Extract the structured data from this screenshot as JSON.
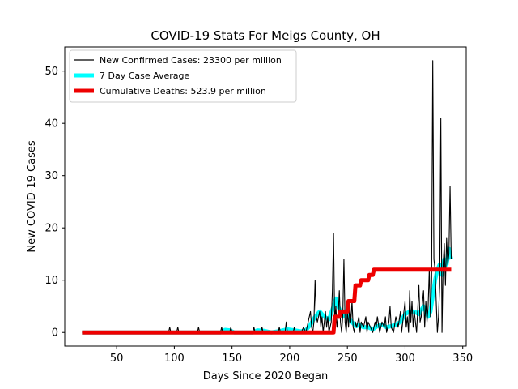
{
  "chart_data": {
    "type": "line",
    "title": "COVID-19 Stats For Meigs County, OH",
    "xlabel": "Days Since 2020 Began",
    "ylabel": "New COVID-19 Cases",
    "xlim": [
      5,
      353
    ],
    "ylim": [
      -2.6,
      54.6
    ],
    "xticks": [
      50,
      100,
      150,
      200,
      250,
      300,
      350
    ],
    "yticks": [
      0,
      10,
      20,
      30,
      40,
      50
    ],
    "legend_position": "top-left",
    "grid": false,
    "series": [
      {
        "name": "New Confirmed Cases: 23300 per million",
        "color": "#000000",
        "style": "thin-line",
        "points": [
          [
            20,
            0
          ],
          [
            95,
            0
          ],
          [
            96,
            1
          ],
          [
            97,
            0
          ],
          [
            102,
            0
          ],
          [
            103,
            1
          ],
          [
            104,
            0
          ],
          [
            120,
            0
          ],
          [
            121,
            1
          ],
          [
            122,
            0
          ],
          [
            140,
            0
          ],
          [
            141,
            1
          ],
          [
            142,
            0
          ],
          [
            148,
            0
          ],
          [
            149,
            1
          ],
          [
            150,
            0
          ],
          [
            168,
            0
          ],
          [
            169,
            1
          ],
          [
            170,
            0
          ],
          [
            175,
            0
          ],
          [
            176,
            1
          ],
          [
            177,
            0
          ],
          [
            190,
            0
          ],
          [
            191,
            1
          ],
          [
            192,
            0
          ],
          [
            196,
            0
          ],
          [
            197,
            2
          ],
          [
            198,
            0
          ],
          [
            203,
            0
          ],
          [
            204,
            1
          ],
          [
            205,
            0
          ],
          [
            210,
            0
          ],
          [
            212,
            1
          ],
          [
            214,
            0
          ],
          [
            216,
            2
          ],
          [
            218,
            4
          ],
          [
            219,
            1
          ],
          [
            220,
            0
          ],
          [
            221,
            2
          ],
          [
            222,
            10
          ],
          [
            223,
            3
          ],
          [
            224,
            2
          ],
          [
            226,
            4
          ],
          [
            227,
            1
          ],
          [
            228,
            3
          ],
          [
            229,
            0
          ],
          [
            230,
            2
          ],
          [
            231,
            4
          ],
          [
            232,
            1
          ],
          [
            233,
            3
          ],
          [
            234,
            0
          ],
          [
            236,
            2
          ],
          [
            237,
            8
          ],
          [
            238,
            19
          ],
          [
            239,
            2
          ],
          [
            240,
            5
          ],
          [
            241,
            1
          ],
          [
            242,
            3
          ],
          [
            243,
            8
          ],
          [
            244,
            2
          ],
          [
            245,
            0
          ],
          [
            246,
            3
          ],
          [
            247,
            14
          ],
          [
            248,
            2
          ],
          [
            249,
            0
          ],
          [
            250,
            4
          ],
          [
            251,
            1
          ],
          [
            252,
            5
          ],
          [
            253,
            2
          ],
          [
            254,
            6
          ],
          [
            255,
            1
          ],
          [
            256,
            0
          ],
          [
            257,
            2
          ],
          [
            258,
            1
          ],
          [
            260,
            3
          ],
          [
            261,
            0
          ],
          [
            262,
            2
          ],
          [
            264,
            1
          ],
          [
            266,
            3
          ],
          [
            267,
            0
          ],
          [
            268,
            2
          ],
          [
            270,
            1
          ],
          [
            272,
            0
          ],
          [
            274,
            2
          ],
          [
            275,
            1
          ],
          [
            276,
            3
          ],
          [
            278,
            0
          ],
          [
            280,
            2
          ],
          [
            282,
            1
          ],
          [
            283,
            3
          ],
          [
            284,
            0
          ],
          [
            286,
            2
          ],
          [
            287,
            5
          ],
          [
            288,
            1
          ],
          [
            290,
            0
          ],
          [
            292,
            3
          ],
          [
            294,
            1
          ],
          [
            296,
            4
          ],
          [
            297,
            0
          ],
          [
            298,
            2
          ],
          [
            300,
            6
          ],
          [
            301,
            1
          ],
          [
            302,
            3
          ],
          [
            303,
            0
          ],
          [
            304,
            8
          ],
          [
            305,
            2
          ],
          [
            306,
            6
          ],
          [
            307,
            1
          ],
          [
            308,
            4
          ],
          [
            310,
            0
          ],
          [
            312,
            9
          ],
          [
            313,
            2
          ],
          [
            314,
            3
          ],
          [
            316,
            8
          ],
          [
            317,
            1
          ],
          [
            318,
            6
          ],
          [
            319,
            2
          ],
          [
            320,
            5
          ],
          [
            321,
            12
          ],
          [
            322,
            3
          ],
          [
            323,
            10
          ],
          [
            324,
            52
          ],
          [
            325,
            14
          ],
          [
            326,
            12
          ],
          [
            327,
            6
          ],
          [
            328,
            0
          ],
          [
            329,
            3
          ],
          [
            330,
            9
          ],
          [
            331,
            41
          ],
          [
            332,
            0
          ],
          [
            333,
            13
          ],
          [
            334,
            17
          ],
          [
            335,
            9
          ],
          [
            336,
            18
          ],
          [
            337,
            13
          ],
          [
            338,
            15
          ],
          [
            339,
            28
          ],
          [
            340,
            14
          ]
        ]
      },
      {
        "name": "7 Day Case Average",
        "color": "#00ffff",
        "style": "thick-line",
        "points": [
          [
            20,
            0
          ],
          [
            140,
            0
          ],
          [
            144,
            0.5
          ],
          [
            148,
            0.4
          ],
          [
            152,
            0
          ],
          [
            168,
            0
          ],
          [
            172,
            0.4
          ],
          [
            178,
            0.3
          ],
          [
            184,
            0
          ],
          [
            192,
            0.3
          ],
          [
            198,
            0.6
          ],
          [
            204,
            0.4
          ],
          [
            210,
            0.2
          ],
          [
            214,
            0.4
          ],
          [
            218,
            1.5
          ],
          [
            222,
            3
          ],
          [
            226,
            4
          ],
          [
            230,
            3
          ],
          [
            234,
            2.5
          ],
          [
            238,
            5
          ],
          [
            240,
            6.5
          ],
          [
            242,
            5
          ],
          [
            244,
            4
          ],
          [
            246,
            3
          ],
          [
            248,
            4
          ],
          [
            250,
            3.5
          ],
          [
            252,
            2.5
          ],
          [
            254,
            2
          ],
          [
            256,
            1.5
          ],
          [
            258,
            1.2
          ],
          [
            260,
            1.5
          ],
          [
            262,
            1.2
          ],
          [
            264,
            1
          ],
          [
            268,
            1
          ],
          [
            272,
            0.6
          ],
          [
            276,
            1.2
          ],
          [
            280,
            1.5
          ],
          [
            284,
            1
          ],
          [
            288,
            1.2
          ],
          [
            292,
            1.5
          ],
          [
            296,
            2
          ],
          [
            300,
            3.5
          ],
          [
            304,
            4
          ],
          [
            308,
            4
          ],
          [
            312,
            3.5
          ],
          [
            316,
            5
          ],
          [
            320,
            3
          ],
          [
            322,
            4
          ],
          [
            324,
            7
          ],
          [
            326,
            10
          ],
          [
            328,
            12
          ],
          [
            330,
            13
          ],
          [
            332,
            11
          ],
          [
            334,
            14
          ],
          [
            336,
            13
          ],
          [
            338,
            16
          ],
          [
            340,
            14
          ]
        ]
      },
      {
        "name": "Cumulative Deaths: 523.9 per million",
        "color": "#ee0000",
        "style": "thick-step",
        "points": [
          [
            20,
            0
          ],
          [
            238,
            0
          ],
          [
            239,
            3
          ],
          [
            243,
            3
          ],
          [
            244,
            4
          ],
          [
            250,
            4
          ],
          [
            251,
            6
          ],
          [
            256,
            6
          ],
          [
            257,
            9
          ],
          [
            261,
            9
          ],
          [
            262,
            10
          ],
          [
            268,
            10
          ],
          [
            269,
            11
          ],
          [
            272,
            11
          ],
          [
            273,
            12
          ],
          [
            340,
            12
          ]
        ]
      }
    ]
  }
}
